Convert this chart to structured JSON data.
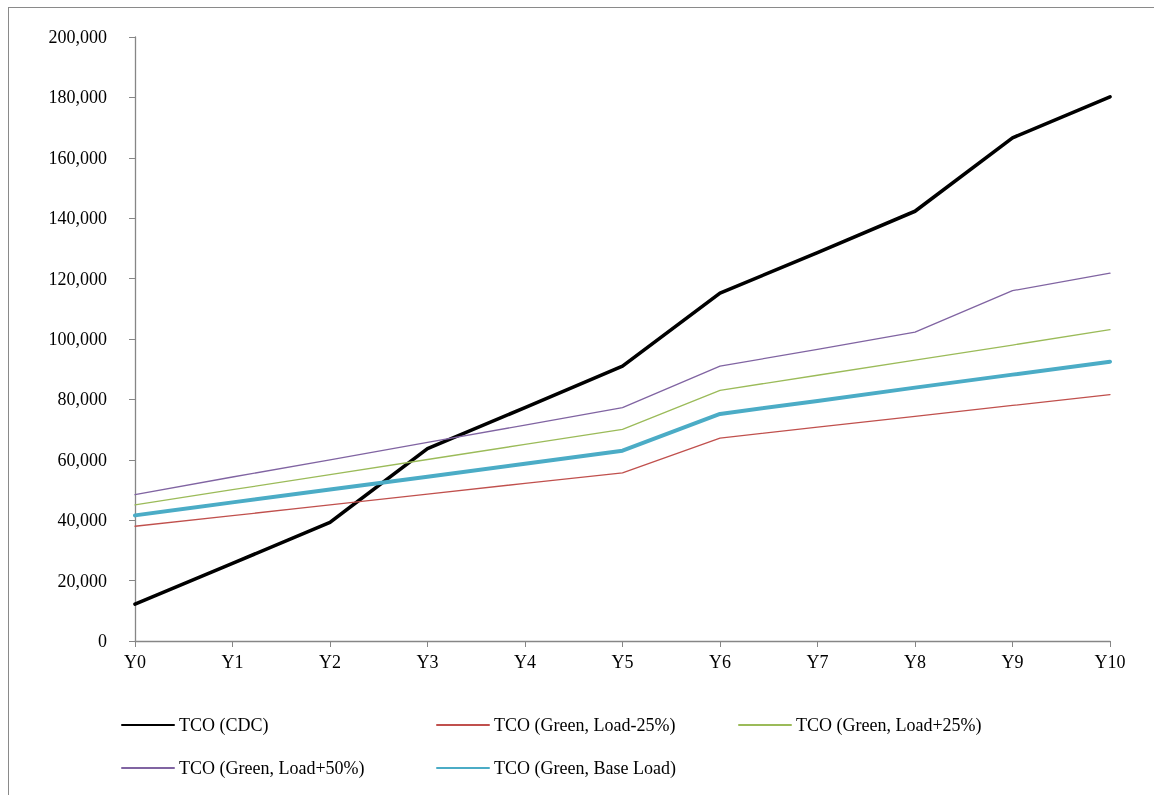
{
  "chart_data": {
    "type": "line",
    "categories": [
      "Y0",
      "Y1",
      "Y2",
      "Y3",
      "Y4",
      "Y5",
      "Y6",
      "Y7",
      "Y8",
      "Y9",
      "Y10"
    ],
    "series": [
      {
        "name": "TCO (CDC)",
        "color": "#000000",
        "values": [
          12200,
          25700,
          39300,
          63700,
          77300,
          91000,
          115200,
          128600,
          142300,
          166600,
          180200
        ]
      },
      {
        "name": "TCO (Green, Load-25%)",
        "color": "#c0504d",
        "values": [
          38000,
          41500,
          45100,
          48600,
          52200,
          55700,
          67200,
          70800,
          74400,
          78000,
          81600
        ]
      },
      {
        "name": "TCO (Green, Load+25%)",
        "color": "#9bbb59",
        "values": [
          45100,
          50100,
          55100,
          60100,
          65100,
          70100,
          83000,
          88000,
          93000,
          98000,
          103100
        ]
      },
      {
        "name": "TCO (Green, Load+50%)",
        "color": "#8064a2",
        "values": [
          48500,
          54300,
          60000,
          65800,
          71500,
          77300,
          91000,
          96600,
          102300,
          116000,
          121800
        ]
      },
      {
        "name": "TCO (Green, Base Load)",
        "color": "#4bacc6",
        "values": [
          41600,
          45900,
          50200,
          54400,
          58700,
          63000,
          75200,
          79500,
          83900,
          88200,
          92500
        ]
      }
    ],
    "ylim": [
      0,
      200000
    ],
    "yticks": [
      {
        "value": 0,
        "label": "0"
      },
      {
        "value": 20000,
        "label": "20,000"
      },
      {
        "value": 40000,
        "label": "40,000"
      },
      {
        "value": 60000,
        "label": "60,000"
      },
      {
        "value": 80000,
        "label": "80,000"
      },
      {
        "value": 100000,
        "label": "100,000"
      },
      {
        "value": 120000,
        "label": "120,000"
      },
      {
        "value": 140000,
        "label": "140,000"
      },
      {
        "value": 160000,
        "label": "160,000"
      },
      {
        "value": 180000,
        "label": "180,000"
      },
      {
        "value": 200000,
        "label": "200,000"
      }
    ],
    "grid": false,
    "legend": "bottom",
    "marker": "none",
    "line_style": "solid"
  }
}
